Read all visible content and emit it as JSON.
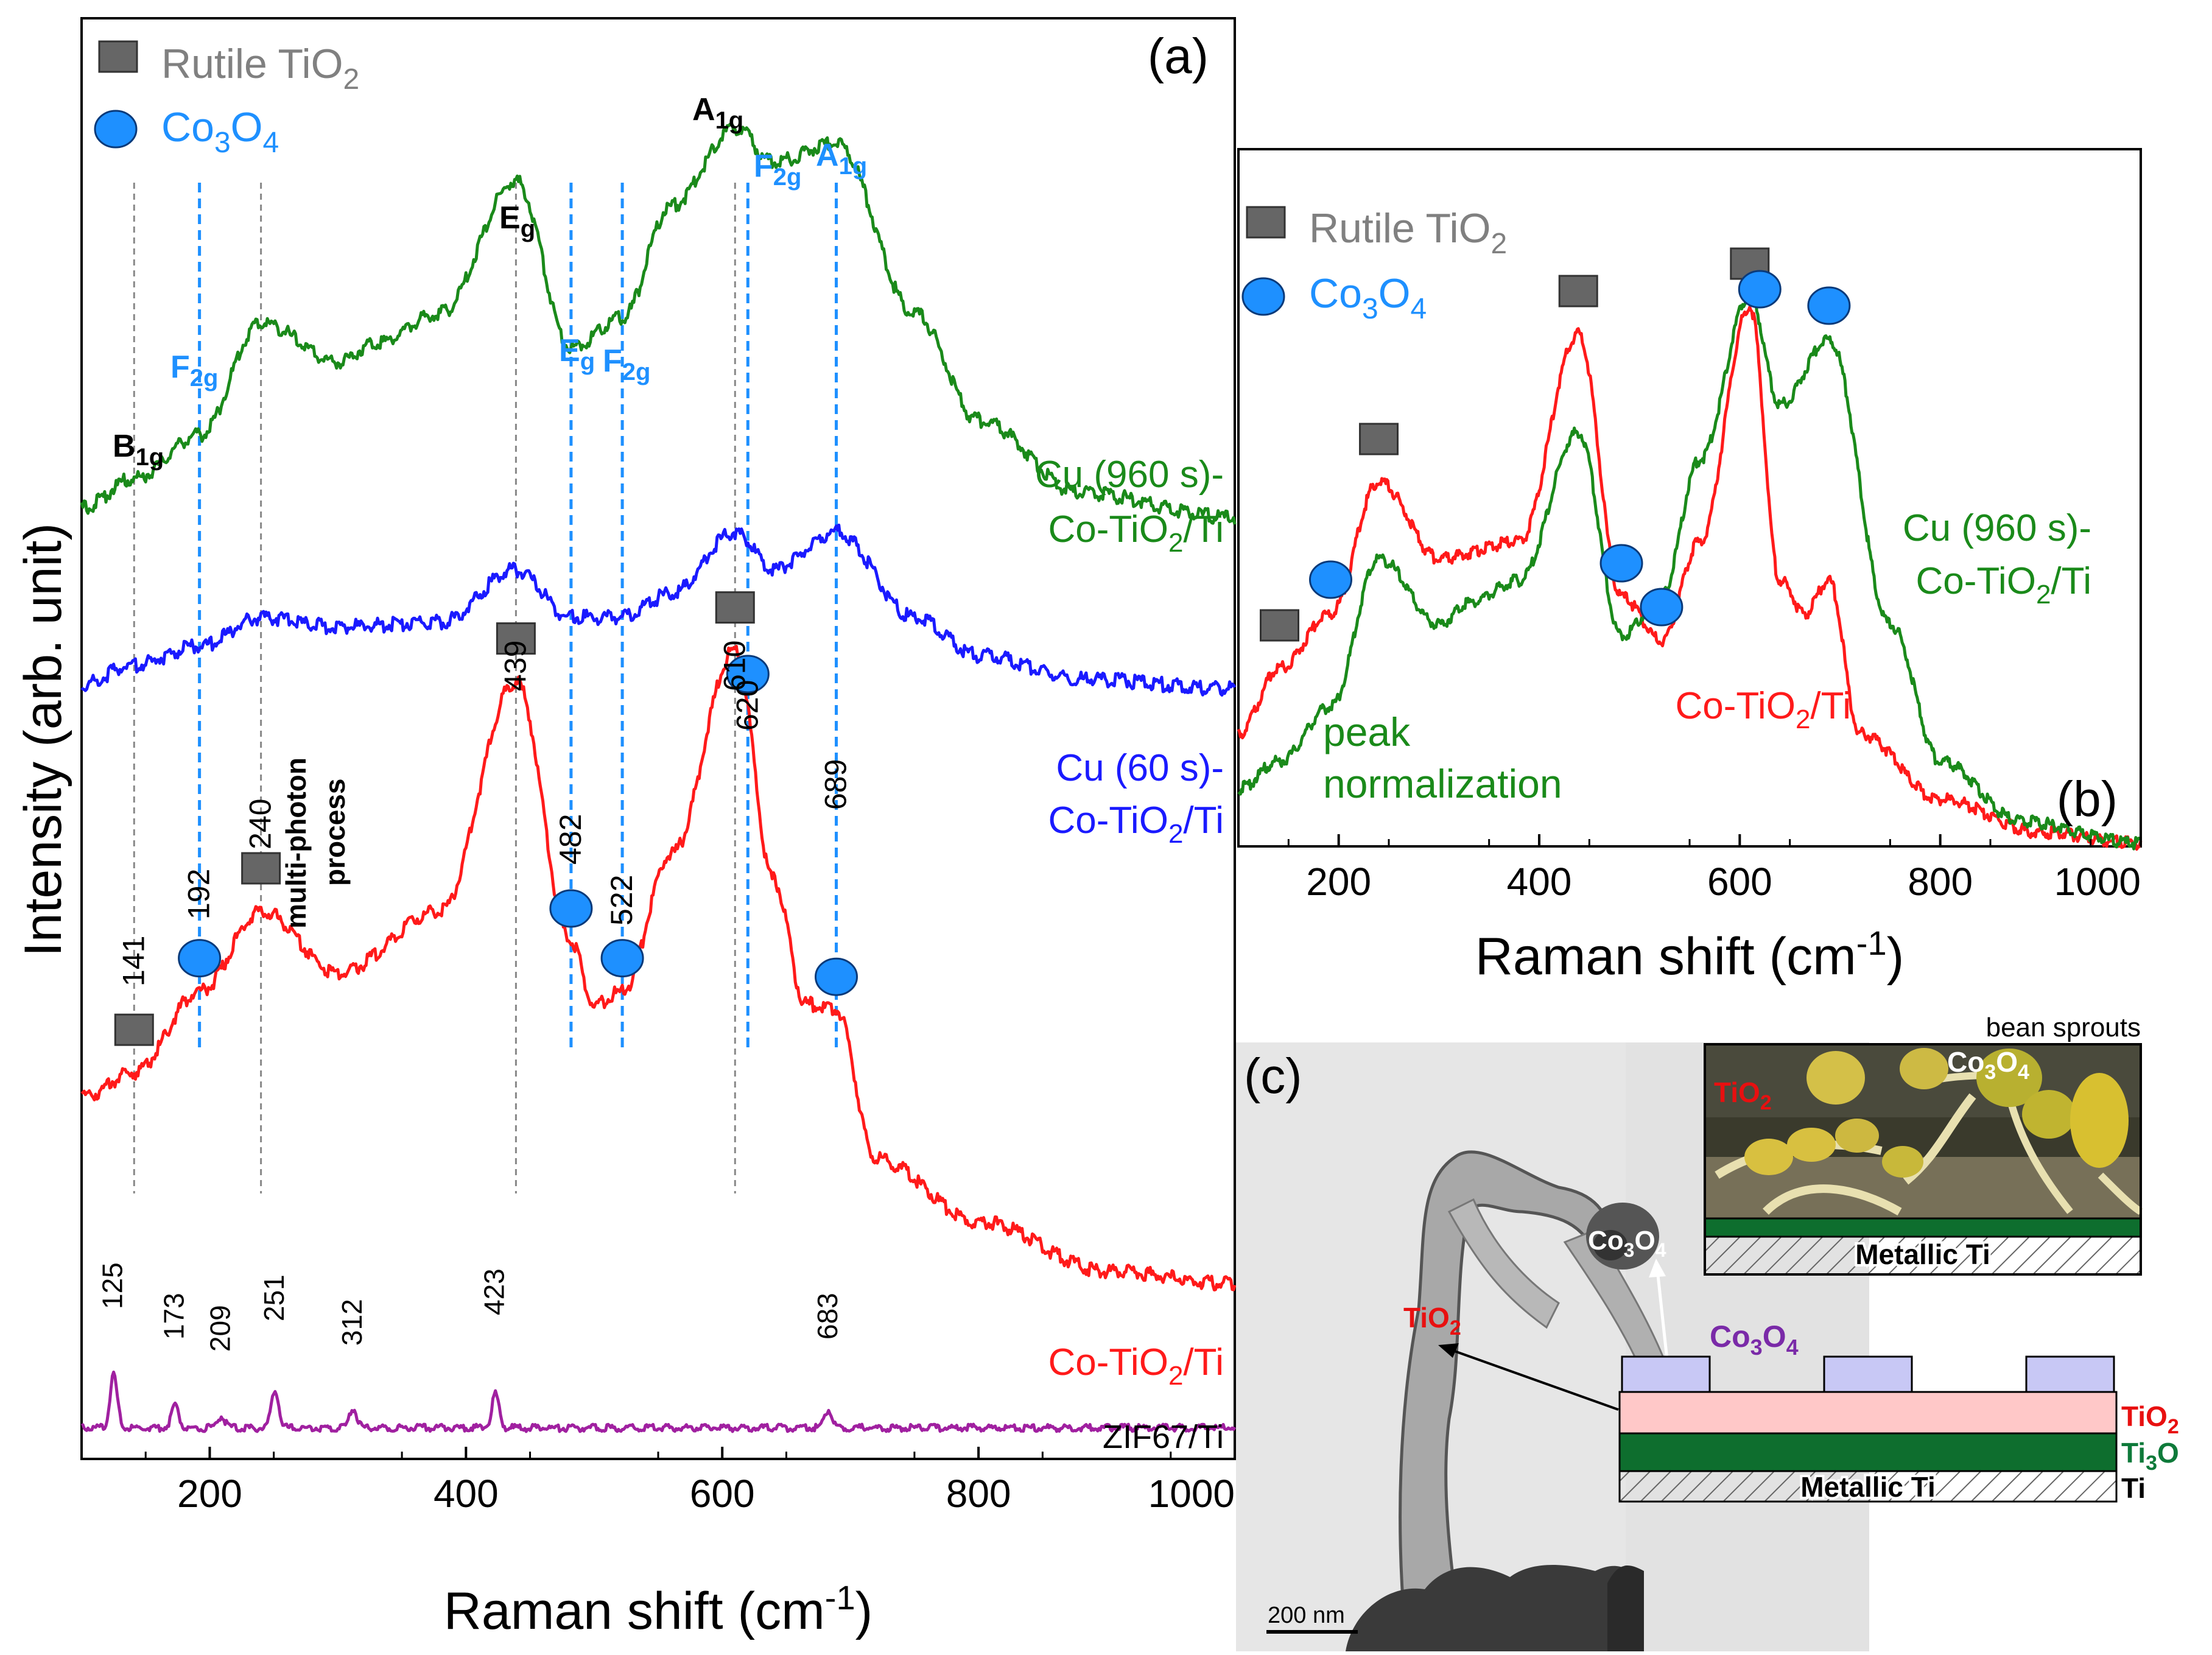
{
  "chart_data": [
    {
      "panel": "(a)",
      "type": "line",
      "xlabel": "Raman shift (cm",
      "xlabel_sup": "-1",
      "xlabel_end": ")",
      "ylabel": "Intensity (arb. unit)",
      "xlim": [
        100,
        1000
      ],
      "xticks": [
        "200",
        "400",
        "600",
        "800",
        "1000"
      ],
      "grid": false,
      "legend": [
        {
          "marker": "square",
          "text": "Rutile TiO",
          "sub": "2",
          "color": "#808080"
        },
        {
          "marker": "circle",
          "text": "Co",
          "sub": "3",
          "text2": "O",
          "sub2": "4",
          "color": "#1e90ff"
        }
      ],
      "series": [
        {
          "name_l1": "Cu (960 s)-",
          "name_l2a": "Co-TiO",
          "name_l2b": "2",
          "name_l2c": "/Ti",
          "color": "#1a8a1a",
          "x": [
            100,
            141,
            192,
            240,
            300,
            330,
            380,
            439,
            482,
            522,
            560,
            610,
            640,
            689,
            750,
            800,
            880,
            1000
          ],
          "y": [
            0.22,
            0.28,
            0.37,
            0.6,
            0.52,
            0.56,
            0.62,
            0.89,
            0.55,
            0.61,
            0.84,
            1.0,
            0.93,
            0.97,
            0.62,
            0.4,
            0.25,
            0.2
          ]
        },
        {
          "name_l1": "Cu (60 s)-",
          "name_l2a": "Co-TiO",
          "name_l2b": "2",
          "name_l2c": "/Ti",
          "color": "#1a1aff",
          "x": [
            100,
            141,
            192,
            240,
            300,
            380,
            439,
            482,
            522,
            560,
            610,
            640,
            689,
            750,
            800,
            880,
            1000
          ],
          "y": [
            0.06,
            0.1,
            0.14,
            0.2,
            0.18,
            0.19,
            0.3,
            0.2,
            0.2,
            0.25,
            0.38,
            0.3,
            0.38,
            0.2,
            0.12,
            0.07,
            0.05
          ]
        },
        {
          "name_l1": "",
          "name_l2a": "Co-TiO",
          "name_l2b": "2",
          "name_l2c": "/Ti",
          "color": "#ff1a1a",
          "x": [
            100,
            141,
            192,
            240,
            300,
            380,
            439,
            482,
            500,
            522,
            560,
            610,
            640,
            665,
            689,
            720,
            800,
            900,
            1000
          ],
          "y": [
            -0.1,
            -0.06,
            0.07,
            0.2,
            0.1,
            0.2,
            0.57,
            0.15,
            0.05,
            0.07,
            0.29,
            0.62,
            0.25,
            0.05,
            0.04,
            -0.2,
            -0.3,
            -0.38,
            -0.4
          ]
        },
        {
          "name_l1": "",
          "name_l2a": "ZIF67/Ti",
          "name_l2b": "",
          "name_l2c": "",
          "color": "#a020a0",
          "x": [
            125,
            173,
            209,
            251,
            312,
            423,
            683
          ],
          "y": [
            0.14,
            0.06,
            0.03,
            0.1,
            0.05,
            0.09,
            0.05
          ]
        }
      ],
      "annotations": {
        "rutile_TiO2_cm": [
          141,
          240,
          439,
          610
        ],
        "Co3O4_cm": [
          192,
          482,
          522,
          620,
          689
        ],
        "peak_labels": [
          "141",
          "192",
          "240",
          "439",
          "482",
          "522",
          "610",
          "620",
          "689"
        ],
        "multiphoton": [
          "multi-photon",
          "process"
        ],
        "zif_peaks": [
          "125",
          "173",
          "209",
          "251",
          "312",
          "423",
          "683"
        ],
        "modes": [
          {
            "main": "B",
            "sub": "1g",
            "color": "#000000"
          },
          {
            "main": "F",
            "sub": "2g",
            "color": "#1e90ff"
          },
          {
            "main": "E",
            "sub": "g",
            "color": "#000000"
          },
          {
            "main": "E",
            "sub": "g",
            "color": "#1e90ff"
          },
          {
            "main": "F",
            "sub": "2g",
            "color": "#1e90ff"
          },
          {
            "main": "A",
            "sub": "1g",
            "color": "#000000"
          },
          {
            "main": "F",
            "sub": "2g",
            "color": "#1e90ff"
          },
          {
            "main": "A",
            "sub": "1g",
            "color": "#1e90ff"
          }
        ]
      }
    },
    {
      "panel": "(b)",
      "type": "line",
      "xlabel": "Raman shift (cm",
      "xlabel_sup": "-1",
      "xlabel_end": ")",
      "xlim": [
        100,
        1000
      ],
      "xticks": [
        "200",
        "400",
        "600",
        "800",
        "1000"
      ],
      "note_l1": "peak",
      "note_l2": "normalization",
      "legend": [
        {
          "marker": "square",
          "text": "Rutile TiO",
          "sub": "2",
          "color": "#808080"
        },
        {
          "marker": "circle",
          "text": "Co",
          "sub": "3",
          "text2": "O",
          "sub2": "4",
          "color": "#1e90ff"
        }
      ],
      "series": [
        {
          "name_l1": "Cu (960 s)-",
          "name_l2a": "Co-TiO",
          "name_l2b": "2",
          "name_l2c": "/Ti",
          "color": "#1a8a1a",
          "x": [
            100,
            141,
            192,
            240,
            300,
            330,
            380,
            439,
            482,
            522,
            560,
            610,
            640,
            689,
            750,
            800,
            880,
            1000
          ],
          "y": [
            0.1,
            0.15,
            0.25,
            0.52,
            0.4,
            0.44,
            0.48,
            0.75,
            0.38,
            0.45,
            0.7,
            1.0,
            0.8,
            0.92,
            0.4,
            0.15,
            0.04,
            0.0
          ]
        },
        {
          "name_l1": "",
          "name_l2a": "Co-TiO",
          "name_l2b": "2",
          "name_l2c": "/Ti",
          "color": "#ff1a1a",
          "x": [
            100,
            141,
            192,
            240,
            300,
            380,
            439,
            482,
            522,
            560,
            610,
            640,
            665,
            689,
            720,
            800,
            900,
            1000
          ],
          "y": [
            0.2,
            0.32,
            0.42,
            0.66,
            0.52,
            0.55,
            0.93,
            0.45,
            0.37,
            0.55,
            0.98,
            0.48,
            0.42,
            0.48,
            0.2,
            0.08,
            0.02,
            0.0
          ]
        }
      ],
      "markers": {
        "rutile_TiO2_cm": [
          141,
          240,
          439,
          610
        ],
        "Co3O4_cm": [
          192,
          482,
          522,
          620,
          689
        ]
      }
    }
  ],
  "panel_c": {
    "label": "(c)",
    "inset_title": "bean sprouts",
    "scalebar": "200 nm",
    "co3o4_main": "Co",
    "co3o4_sub": "3",
    "co3o4_main2": "O",
    "co3o4_sub2": "4",
    "tio2_main": "TiO",
    "tio2_sub": "2",
    "metallic_ti": "Metallic Ti",
    "layer_tio2_main": "TiO",
    "layer_tio2_sub": "2",
    "layer_ti3o_main": "Ti",
    "layer_ti3o_sub": "3",
    "layer_ti3o_main2": "O",
    "layer_ti": "Ti",
    "colors": {
      "tio2": "#ffc8c8",
      "ti3o": "#0e6e2e",
      "co3o4": "#c8c8f5",
      "label_red": "#e81010",
      "label_green": "#0e7a3a",
      "label_purple": "#7a2aa8"
    }
  }
}
